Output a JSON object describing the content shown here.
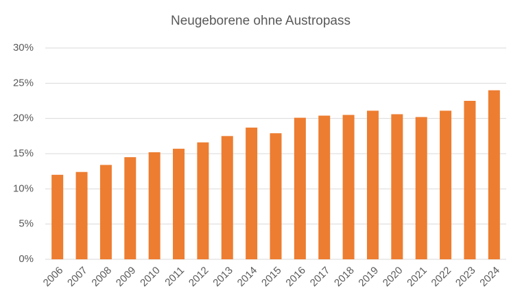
{
  "chart_data": {
    "type": "bar",
    "title": "Neugeborene ohne Austropass",
    "categories": [
      "2006",
      "2007",
      "2008",
      "2009",
      "2010",
      "2011",
      "2012",
      "2013",
      "2014",
      "2015",
      "2016",
      "2017",
      "2018",
      "2019",
      "2020",
      "2021",
      "2022",
      "2023",
      "2024"
    ],
    "values": [
      12.0,
      12.4,
      13.4,
      14.5,
      15.2,
      15.7,
      16.6,
      17.5,
      18.7,
      17.9,
      20.1,
      20.4,
      20.5,
      21.1,
      20.6,
      20.2,
      21.1,
      22.5,
      24.0
    ],
    "color": "#ed7d31",
    "ylim": [
      0,
      30
    ],
    "yticks": [
      {
        "value": 0,
        "label": "0%"
      },
      {
        "value": 5,
        "label": "5%"
      },
      {
        "value": 10,
        "label": "10%"
      },
      {
        "value": 15,
        "label": "15%"
      },
      {
        "value": 20,
        "label": "20%"
      },
      {
        "value": 25,
        "label": "25%"
      },
      {
        "value": 30,
        "label": "30%"
      }
    ],
    "grid": true
  }
}
